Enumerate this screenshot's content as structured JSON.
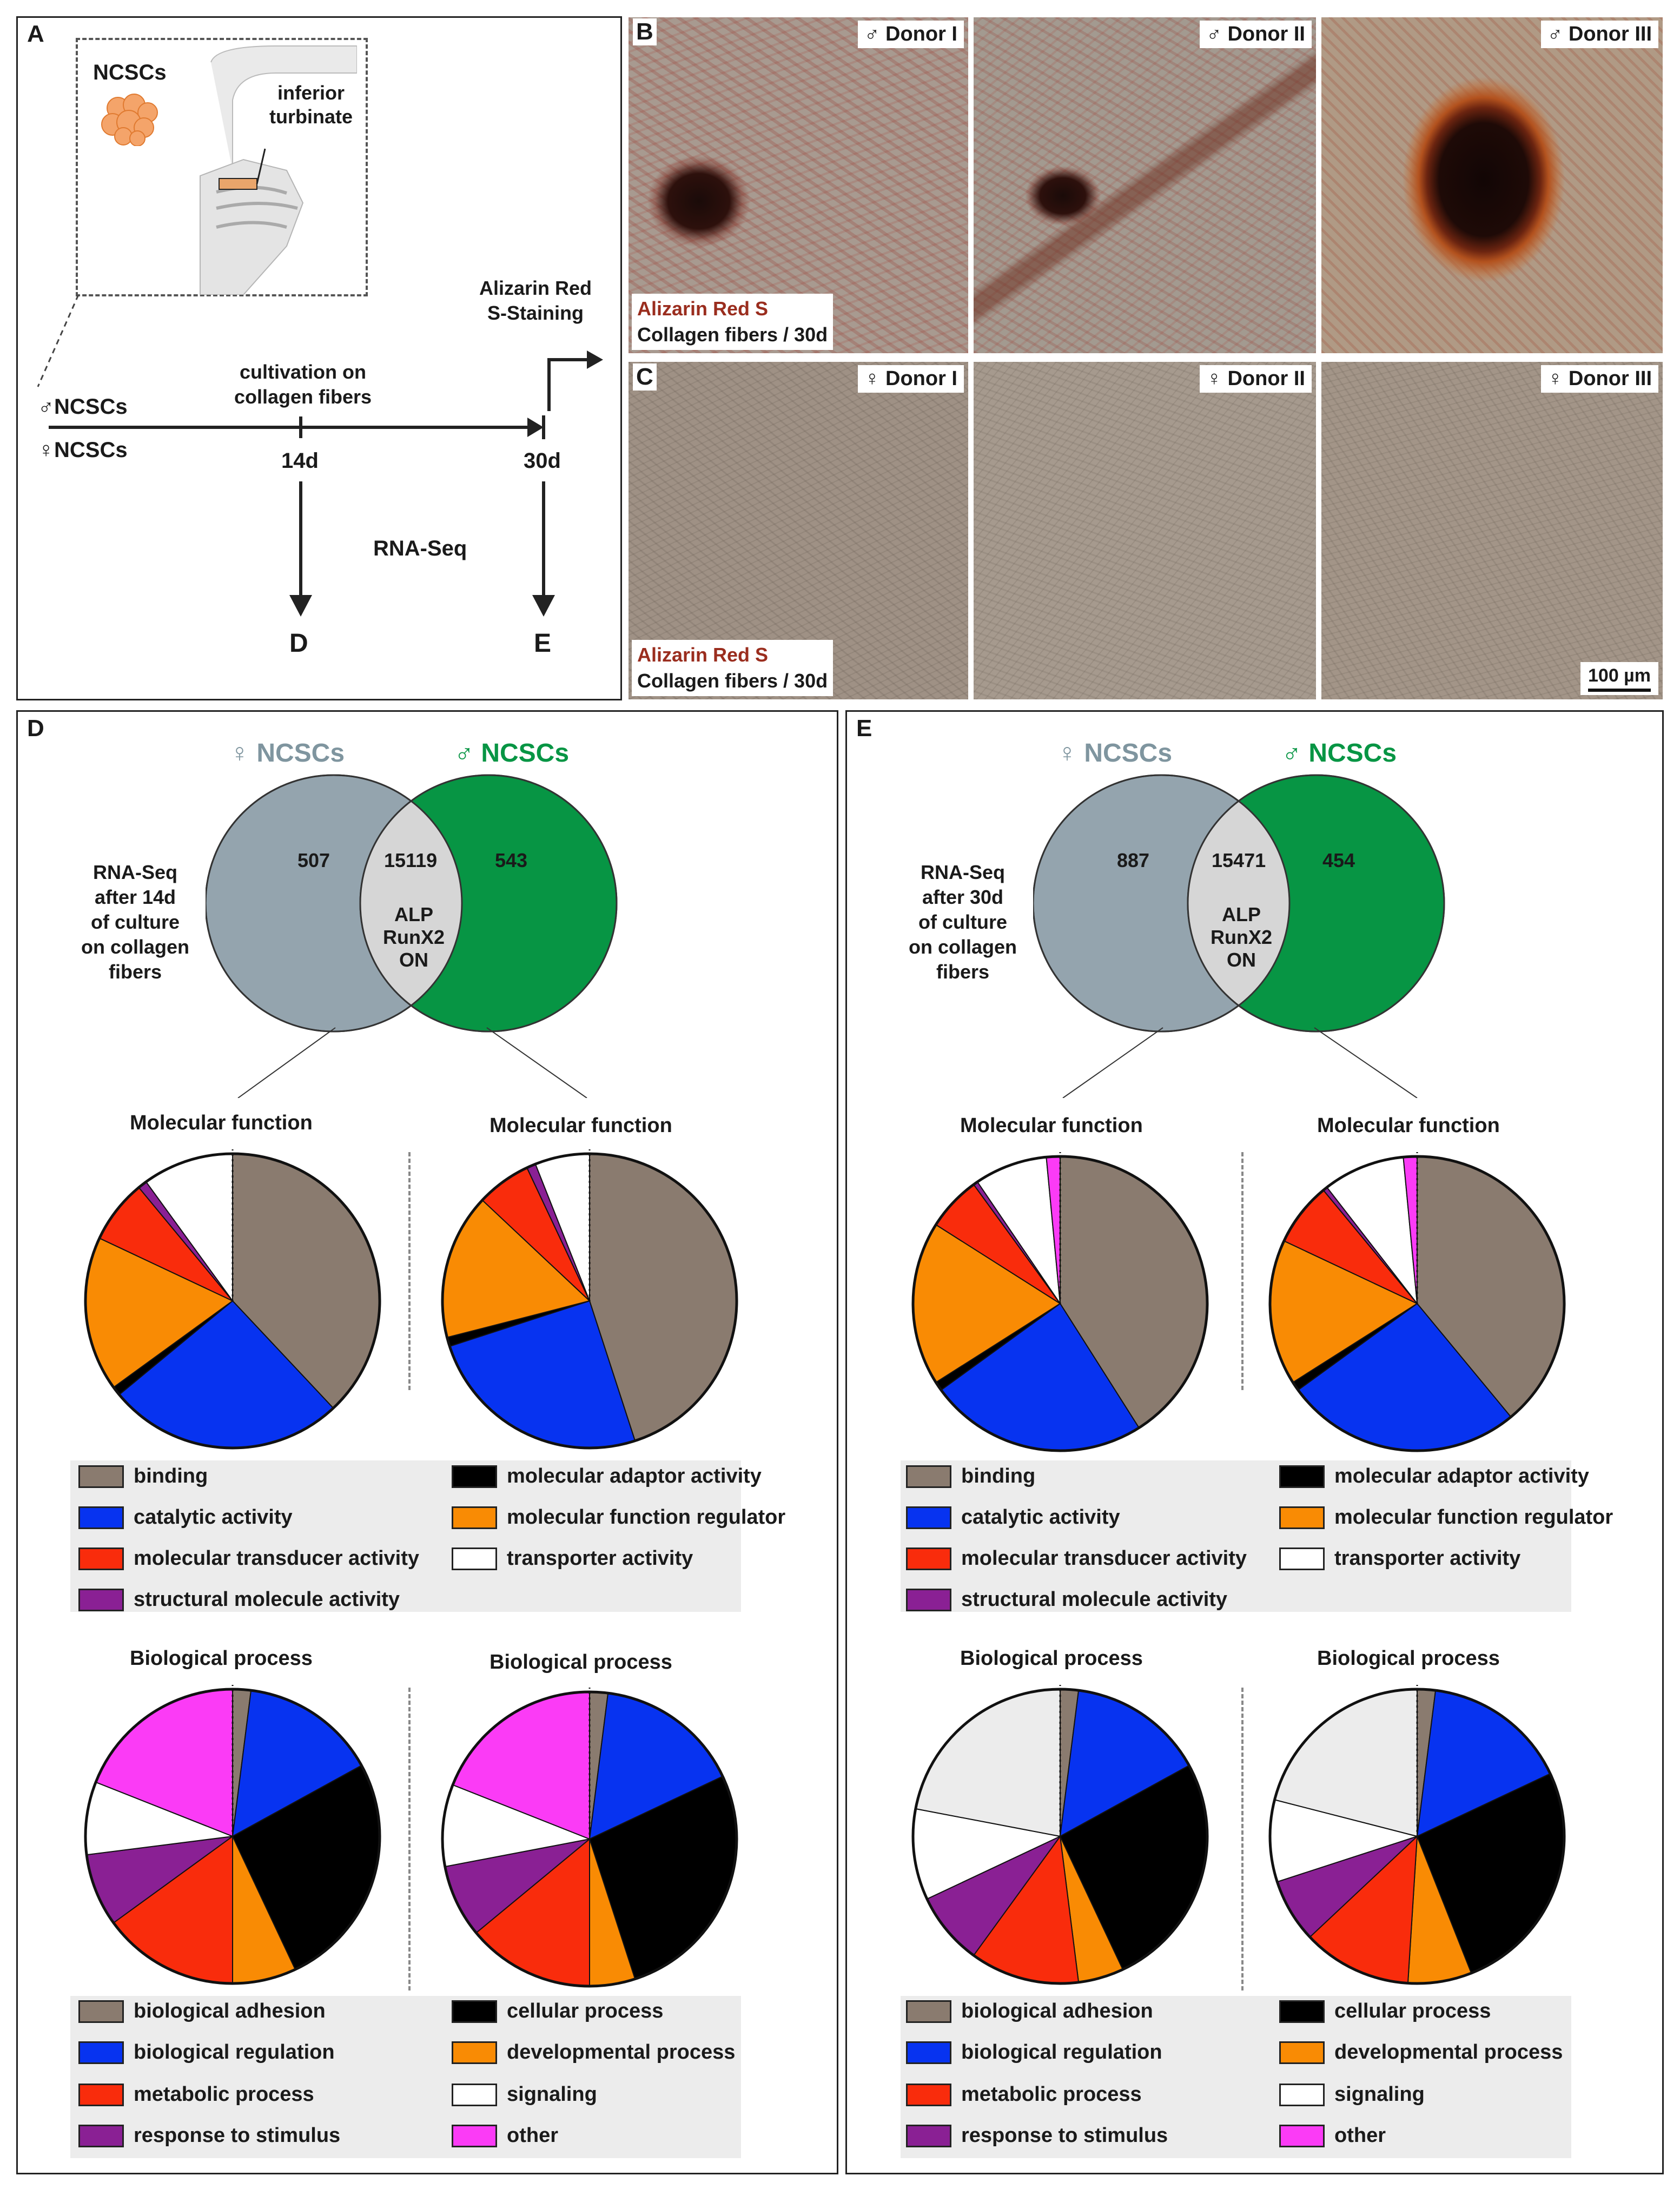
{
  "panelA": {
    "label": "A",
    "ncscs": "NCSCs",
    "turbinate": [
      "inferior",
      "turbinate"
    ],
    "male_ncscs": "♂NCSCs",
    "female_ncscs": "♀NCSCs",
    "cultivation": [
      "cultivation on",
      "collagen fibers"
    ],
    "day14": "14d",
    "day30": "30d",
    "alizarin": [
      "Alizarin Red",
      "S-Staining"
    ],
    "rnaseq": "RNA-Seq",
    "arrowD": "D",
    "arrowE": "E"
  },
  "panelB": {
    "label": "B",
    "donors": [
      "♂ Donor I",
      "♂ Donor II",
      "♂ Donor III"
    ],
    "stain": "Alizarin Red S",
    "substrate": "Collagen fibers / 30d"
  },
  "panelC": {
    "label": "C",
    "donors": [
      "♀ Donor I",
      "♀ Donor II",
      "♀ Donor III"
    ],
    "stain": "Alizarin Red S",
    "substrate": "Collagen fibers / 30d",
    "scale": "100 µm"
  },
  "colors": {
    "female_venn": "#94a4ae",
    "male_venn": "#079544",
    "overlap": "#d6d6d6",
    "female_text": "#7f959f",
    "male_text": "#079544",
    "alizarin_red": "#9a2d1e"
  },
  "panelD": {
    "label": "D",
    "female_header": "♀ NCSCs",
    "male_header": "♂ NCSCs",
    "description": [
      "RNA-Seq",
      "after 14d",
      "of culture",
      "on collagen",
      "fibers"
    ],
    "female_only": "507",
    "shared": "15119",
    "male_only": "543",
    "overlap_labels": [
      "ALP",
      "RunX2",
      "ON"
    ],
    "mf_title": "Molecular function",
    "bp_title": "Biological process"
  },
  "panelE": {
    "label": "E",
    "female_header": "♀ NCSCs",
    "male_header": "♂ NCSCs",
    "description": [
      "RNA-Seq",
      "after 30d",
      "of culture",
      "on collagen",
      "fibers"
    ],
    "female_only": "887",
    "shared": "15471",
    "male_only": "454",
    "overlap_labels": [
      "ALP",
      "RunX2",
      "ON"
    ],
    "mf_title": "Molecular function",
    "bp_title": "Biological process"
  },
  "mf_legend": [
    {
      "label": "binding",
      "color": "#8a7b6f"
    },
    {
      "label": "catalytic activity",
      "color": "#0733f0"
    },
    {
      "label": "molecular transducer activity",
      "color": "#f92c0c"
    },
    {
      "label": "structural molecule activity",
      "color": "#8a2094"
    },
    {
      "label": "molecular adaptor activity",
      "color": "#000000"
    },
    {
      "label": "molecular function regulator",
      "color": "#f98b04"
    },
    {
      "label": "transporter activity",
      "color": "#ffffff"
    }
  ],
  "bp_legend": [
    {
      "label": "biological adhesion",
      "color": "#8a7b6f"
    },
    {
      "label": "biological regulation",
      "color": "#0733f0"
    },
    {
      "label": "metabolic process",
      "color": "#f92c0c"
    },
    {
      "label": "response to stimulus",
      "color": "#8a2094"
    },
    {
      "label": "cellular process",
      "color": "#000000"
    },
    {
      "label": "developmental process",
      "color": "#f98b04"
    },
    {
      "label": "signaling",
      "color": "#ffffff"
    },
    {
      "label": "other",
      "color": "#fb3bf6"
    }
  ],
  "chart_data": [
    {
      "type": "pie",
      "title": "Molecular function",
      "group": "D ♀ NCSCs 14d",
      "categories": [
        "binding",
        "catalytic activity",
        "molecular adaptor activity",
        "molecular function regulator",
        "molecular transducer activity",
        "structural molecule activity",
        "transporter activity"
      ],
      "colors": [
        "#8a7b6f",
        "#0733f0",
        "#000000",
        "#f98b04",
        "#f92c0c",
        "#8a2094",
        "#ffffff"
      ],
      "values": [
        38,
        26,
        1,
        17,
        7,
        1,
        10
      ]
    },
    {
      "type": "pie",
      "title": "Molecular function",
      "group": "D ♂ NCSCs 14d",
      "categories": [
        "binding",
        "catalytic activity",
        "molecular adaptor activity",
        "molecular function regulator",
        "molecular transducer activity",
        "structural molecule activity",
        "transporter activity"
      ],
      "colors": [
        "#8a7b6f",
        "#0733f0",
        "#000000",
        "#f98b04",
        "#f92c0c",
        "#8a2094",
        "#ffffff"
      ],
      "values": [
        45,
        25,
        1,
        16,
        6,
        1,
        6
      ]
    },
    {
      "type": "pie",
      "title": "Biological process",
      "group": "D ♀ NCSCs 14d",
      "categories": [
        "biological adhesion",
        "biological regulation",
        "cellular process",
        "developmental process",
        "metabolic process",
        "response to stimulus",
        "signaling",
        "other"
      ],
      "colors": [
        "#8a7b6f",
        "#0733f0",
        "#000000",
        "#f98b04",
        "#f92c0c",
        "#8a2094",
        "#ffffff",
        "#fb3bf6"
      ],
      "values": [
        2,
        15,
        26,
        7,
        15,
        8,
        8,
        19
      ]
    },
    {
      "type": "pie",
      "title": "Biological process",
      "group": "D ♂ NCSCs 14d",
      "categories": [
        "biological adhesion",
        "biological regulation",
        "cellular process",
        "developmental process",
        "metabolic process",
        "response to stimulus",
        "signaling",
        "other"
      ],
      "colors": [
        "#8a7b6f",
        "#0733f0",
        "#000000",
        "#f98b04",
        "#f92c0c",
        "#8a2094",
        "#ffffff",
        "#fb3bf6"
      ],
      "values": [
        2,
        16,
        27,
        5,
        14,
        8,
        9,
        19
      ]
    },
    {
      "type": "pie",
      "title": "Molecular function",
      "group": "E ♀ NCSCs 30d",
      "categories": [
        "binding",
        "catalytic activity",
        "molecular adaptor activity",
        "molecular function regulator",
        "molecular transducer activity",
        "structural molecule activity",
        "transporter activity",
        "other"
      ],
      "colors": [
        "#8a7b6f",
        "#0733f0",
        "#000000",
        "#f98b04",
        "#f92c0c",
        "#8a2094",
        "#ffffff",
        "#fb3bf6"
      ],
      "values": [
        41,
        24,
        1,
        18,
        6,
        0.5,
        8,
        1.5
      ]
    },
    {
      "type": "pie",
      "title": "Molecular function",
      "group": "E ♂ NCSCs 30d",
      "categories": [
        "binding",
        "catalytic activity",
        "molecular adaptor activity",
        "molecular function regulator",
        "molecular transducer activity",
        "structural molecule activity",
        "transporter activity",
        "other"
      ],
      "colors": [
        "#8a7b6f",
        "#0733f0",
        "#000000",
        "#f98b04",
        "#f92c0c",
        "#8a2094",
        "#ffffff",
        "#fb3bf6"
      ],
      "values": [
        39,
        26,
        1,
        16,
        7,
        0.5,
        9,
        1.5
      ]
    },
    {
      "type": "pie",
      "title": "Biological process",
      "group": "E ♀ NCSCs 30d",
      "categories": [
        "biological adhesion",
        "biological regulation",
        "cellular process",
        "developmental process",
        "metabolic process",
        "response to stimulus",
        "signaling",
        "other"
      ],
      "colors": [
        "#8a7b6f",
        "#0733f0",
        "#000000",
        "#f98b04",
        "#f92c0c",
        "#8a2094",
        "#ffffff",
        "#ececec"
      ],
      "values": [
        2,
        15,
        26,
        5,
        12,
        8,
        10,
        22
      ]
    },
    {
      "type": "pie",
      "title": "Biological process",
      "group": "E ♂ NCSCs 30d",
      "categories": [
        "biological adhesion",
        "biological regulation",
        "cellular process",
        "developmental process",
        "metabolic process",
        "response to stimulus",
        "signaling",
        "other"
      ],
      "colors": [
        "#8a7b6f",
        "#0733f0",
        "#000000",
        "#f98b04",
        "#f92c0c",
        "#8a2094",
        "#ffffff",
        "#ececec"
      ],
      "values": [
        2,
        16,
        26,
        7,
        12,
        7,
        9,
        21
      ]
    }
  ]
}
